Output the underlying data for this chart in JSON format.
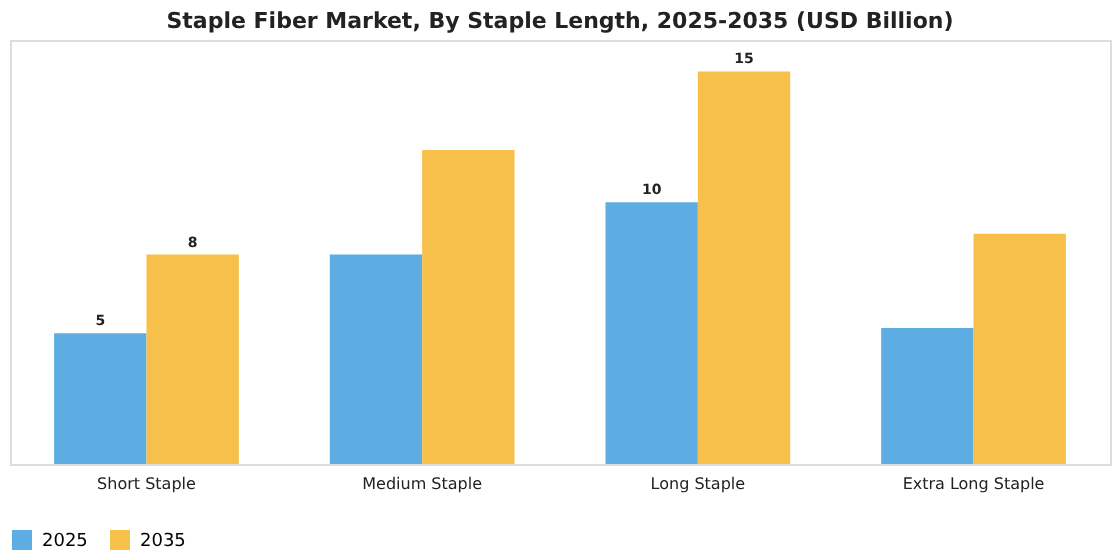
{
  "chart_data": {
    "type": "bar",
    "title": "Staple Fiber Market, By Staple Length, 2025-2035 (USD Billion)",
    "categories": [
      "Short Staple",
      "Medium Staple",
      "Long Staple",
      "Extra Long Staple"
    ],
    "series": [
      {
        "name": "2025",
        "color": "#5dade2",
        "values": [
          5,
          8.0,
          10,
          5.2
        ],
        "value_labels": [
          "5",
          null,
          "10",
          null
        ]
      },
      {
        "name": "2035",
        "color": "#f7c04a",
        "values": [
          8,
          12.0,
          15,
          8.8
        ],
        "value_labels": [
          "8",
          null,
          "15",
          null
        ]
      }
    ],
    "legend": "bottom",
    "grid": false
  }
}
